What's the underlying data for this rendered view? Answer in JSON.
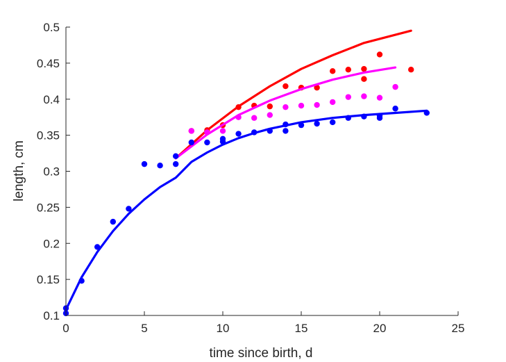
{
  "chart_data": {
    "type": "scatter",
    "title": "",
    "xlabel": "time since birth, d",
    "ylabel": "length, cm",
    "xlim": [
      0,
      25
    ],
    "ylim": [
      0.1,
      0.5
    ],
    "xticks": [
      "0",
      "5",
      "10",
      "15",
      "20",
      "25"
    ],
    "yticks": [
      "0.1",
      "0.15",
      "0.2",
      "0.25",
      "0.3",
      "0.35",
      "0.4",
      "0.45",
      "0.5"
    ],
    "grid": false,
    "legend": "none",
    "series": [
      {
        "color": "#ff0000",
        "points": [
          [
            8,
            0.356
          ],
          [
            9,
            0.357
          ],
          [
            10,
            0.364
          ],
          [
            11,
            0.389
          ],
          [
            12,
            0.391
          ],
          [
            13,
            0.39
          ],
          [
            14,
            0.418
          ],
          [
            15,
            0.416
          ],
          [
            16,
            0.416
          ],
          [
            17,
            0.439
          ],
          [
            18,
            0.441
          ],
          [
            19,
            0.442
          ],
          [
            19,
            0.428
          ],
          [
            20,
            0.462
          ],
          [
            22,
            0.441
          ]
        ],
        "fit": [
          [
            7,
            0.318
          ],
          [
            9,
            0.357
          ],
          [
            11,
            0.39
          ],
          [
            13,
            0.418
          ],
          [
            15,
            0.442
          ],
          [
            17,
            0.461
          ],
          [
            19,
            0.478
          ],
          [
            22,
            0.495
          ]
        ]
      },
      {
        "color": "#ff00ff",
        "points": [
          [
            8,
            0.356
          ],
          [
            9,
            0.354
          ],
          [
            10,
            0.356
          ],
          [
            11,
            0.375
          ],
          [
            12,
            0.374
          ],
          [
            13,
            0.378
          ],
          [
            14,
            0.389
          ],
          [
            15,
            0.391
          ],
          [
            16,
            0.392
          ],
          [
            17,
            0.396
          ],
          [
            18,
            0.403
          ],
          [
            19,
            0.404
          ],
          [
            20,
            0.402
          ],
          [
            21,
            0.417
          ]
        ],
        "fit": [
          [
            7,
            0.318
          ],
          [
            9,
            0.351
          ],
          [
            11,
            0.378
          ],
          [
            13,
            0.398
          ],
          [
            15,
            0.414
          ],
          [
            17,
            0.427
          ],
          [
            19,
            0.437
          ],
          [
            21,
            0.444
          ]
        ]
      },
      {
        "color": "#0000ff",
        "points": [
          [
            0,
            0.11
          ],
          [
            0,
            0.103
          ],
          [
            1,
            0.148
          ],
          [
            2,
            0.195
          ],
          [
            3,
            0.23
          ],
          [
            4,
            0.248
          ],
          [
            5,
            0.31
          ],
          [
            6,
            0.308
          ],
          [
            7,
            0.321
          ],
          [
            7,
            0.31
          ],
          [
            8,
            0.34
          ],
          [
            9,
            0.34
          ],
          [
            10,
            0.345
          ],
          [
            10,
            0.341
          ],
          [
            11,
            0.352
          ],
          [
            12,
            0.354
          ],
          [
            13,
            0.356
          ],
          [
            14,
            0.356
          ],
          [
            14,
            0.365
          ],
          [
            15,
            0.364
          ],
          [
            16,
            0.366
          ],
          [
            17,
            0.368
          ],
          [
            18,
            0.374
          ],
          [
            19,
            0.376
          ],
          [
            20,
            0.374
          ],
          [
            20,
            0.377
          ],
          [
            21,
            0.387
          ],
          [
            23,
            0.381
          ]
        ],
        "fit": [
          [
            0,
            0.108
          ],
          [
            1,
            0.153
          ],
          [
            2,
            0.188
          ],
          [
            3,
            0.217
          ],
          [
            4,
            0.241
          ],
          [
            5,
            0.261
          ],
          [
            6,
            0.278
          ],
          [
            7,
            0.291
          ],
          [
            8,
            0.313
          ],
          [
            9,
            0.326
          ],
          [
            10,
            0.337
          ],
          [
            11,
            0.346
          ],
          [
            12,
            0.353
          ],
          [
            13,
            0.359
          ],
          [
            15,
            0.368
          ],
          [
            17,
            0.374
          ],
          [
            19,
            0.378
          ],
          [
            21,
            0.381
          ],
          [
            23,
            0.384
          ]
        ]
      }
    ]
  }
}
